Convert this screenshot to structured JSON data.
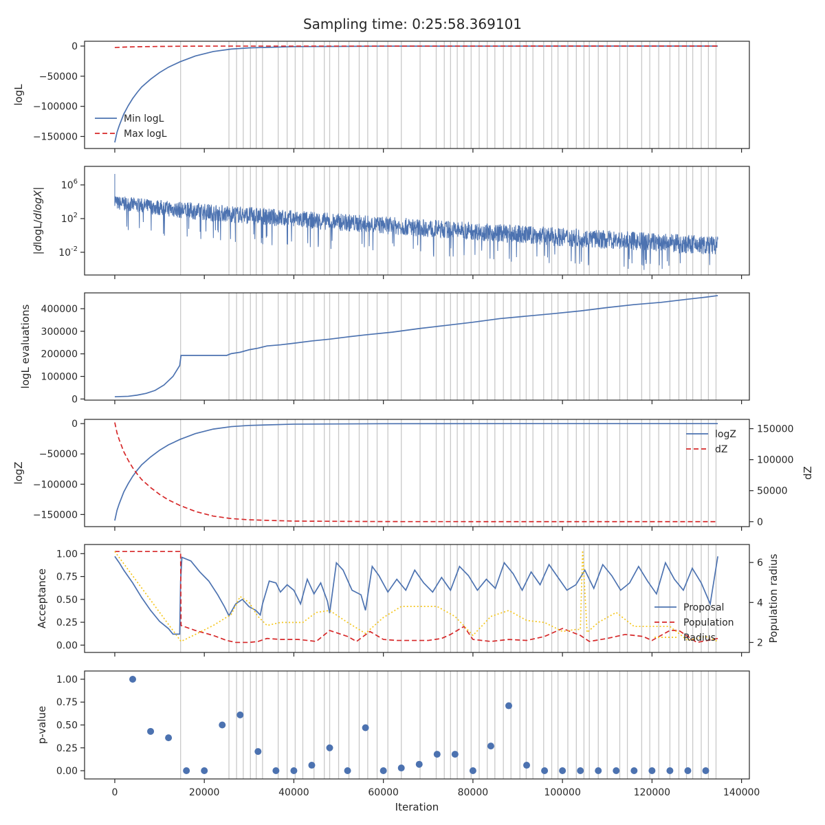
{
  "title": "Sampling time: 0:25:58.369101",
  "colors": {
    "blue": "#4C72B0",
    "red": "#D62728",
    "yellow": "#F5C518",
    "vline": "#C8C8C8",
    "axis": "#262626"
  },
  "chart_data": [
    {
      "id": "logL",
      "type": "line",
      "ylabel": "logL",
      "xlim": [
        -6750,
        141750
      ],
      "ylim": [
        -170000,
        8000
      ],
      "yticks": [
        0,
        -50000,
        -100000,
        -150000
      ],
      "ytick_labels": [
        "0",
        "−50000",
        "−100000",
        "−150000"
      ],
      "legend": {
        "placement": "lower-left",
        "entries": [
          "Min logL",
          "Max logL"
        ]
      },
      "series": [
        {
          "name": "Min logL",
          "style": "solid",
          "color": "#4C72B0",
          "x": [
            0,
            500,
            1000,
            2000,
            3000,
            4000,
            5000,
            6000,
            8000,
            10000,
            12000,
            14600,
            18000,
            22000,
            26000,
            30000,
            40000,
            60000,
            90000,
            134700
          ],
          "y": [
            -160000,
            -143000,
            -132000,
            -113000,
            -99000,
            -87000,
            -77000,
            -68000,
            -55000,
            -44000,
            -35000,
            -26000,
            -16500,
            -9000,
            -5000,
            -3000,
            -900,
            -150,
            -40,
            -15
          ]
        },
        {
          "name": "Max logL",
          "style": "dashed",
          "color": "#D62728",
          "x": [
            0,
            2000,
            5000,
            10000,
            15000,
            20000,
            134700
          ],
          "y": [
            -2500,
            -1700,
            -1100,
            -600,
            -250,
            -80,
            0
          ]
        }
      ]
    },
    {
      "id": "dlogL",
      "type": "line",
      "ylabel": "|dlogL/dlogX|",
      "yscale": "log",
      "xlim": [
        -6750,
        141750
      ],
      "ylim_log10": [
        -4.7,
        8.2
      ],
      "yticks_log10": [
        6,
        2,
        -2
      ],
      "ytick_labels": [
        "10^6",
        "10^2",
        "10^-2"
      ],
      "trend": {
        "x": [
          0,
          500,
          15000,
          40000,
          70000,
          100000,
          134700
        ],
        "upper_log10": [
          5.2,
          4.7,
          4.0,
          3.0,
          1.9,
          0.9,
          -0.1
        ],
        "lower_log10": [
          3.5,
          3.0,
          2.0,
          0.9,
          -0.2,
          -1.3,
          -2.4
        ]
      },
      "peak": {
        "x": 0,
        "y_log10": 7.3
      }
    },
    {
      "id": "evals",
      "type": "line",
      "ylabel": "logL evaluations",
      "xlim": [
        -6750,
        141750
      ],
      "ylim": [
        -5000,
        470000
      ],
      "yticks": [
        0,
        100000,
        200000,
        300000,
        400000
      ],
      "ytick_labels": [
        "0",
        "100000",
        "200000",
        "300000",
        "400000"
      ],
      "series": [
        {
          "name": "",
          "color": "#4C72B0",
          "x": [
            0,
            3000,
            5000,
            7000,
            9000,
            11000,
            13000,
            14500,
            14800,
            25000,
            26000,
            28000,
            30000,
            32000,
            34000,
            37000,
            40000,
            44000,
            48000,
            52000,
            56000,
            62000,
            68000,
            74000,
            80000,
            86000,
            92000,
            98000,
            104000,
            110000,
            116000,
            122000,
            128000,
            132000,
            134700
          ],
          "y": [
            10000,
            12000,
            17000,
            25000,
            38000,
            62000,
            100000,
            148000,
            193000,
            193000,
            201000,
            207000,
            218000,
            225000,
            235000,
            240000,
            247000,
            257000,
            265000,
            275000,
            284000,
            296000,
            312000,
            326000,
            340000,
            356000,
            367000,
            378000,
            390000,
            405000,
            418000,
            428000,
            442000,
            451000,
            458000
          ]
        }
      ]
    },
    {
      "id": "logZ",
      "type": "line",
      "ylabel": "logZ",
      "y2label": "dZ",
      "xlim": [
        -6750,
        141750
      ],
      "ylim": [
        -170000,
        7000
      ],
      "yticks": [
        0,
        -50000,
        -100000,
        -150000
      ],
      "ytick_labels": [
        "0",
        "−50000",
        "−100000",
        "−150000"
      ],
      "y2lim": [
        -8000,
        165000
      ],
      "y2ticks": [
        0,
        50000,
        100000,
        150000
      ],
      "y2tick_labels": [
        "0",
        "50000",
        "100000",
        "150000"
      ],
      "legend": {
        "placement": "upper-right",
        "entries": [
          "logZ",
          "dZ"
        ]
      },
      "series": [
        {
          "name": "logZ",
          "axis": "left",
          "style": "solid",
          "color": "#4C72B0",
          "x": [
            0,
            500,
            1000,
            2000,
            3000,
            4000,
            5000,
            6000,
            8000,
            10000,
            12000,
            14600,
            18000,
            22000,
            26000,
            30000,
            40000,
            60000,
            90000,
            134700
          ],
          "y": [
            -160000,
            -143000,
            -132000,
            -113000,
            -99000,
            -87000,
            -77000,
            -68000,
            -55000,
            -44000,
            -35000,
            -26000,
            -16500,
            -9000,
            -5000,
            -3000,
            -900,
            -150,
            -40,
            -15
          ]
        },
        {
          "name": "dZ",
          "axis": "right",
          "style": "dashed",
          "color": "#D62728",
          "x": [
            0,
            500,
            1000,
            2000,
            3000,
            4000,
            5000,
            6000,
            8000,
            10000,
            12000,
            14600,
            18000,
            22000,
            26000,
            30000,
            40000,
            60000,
            90000,
            134700
          ],
          "y": [
            160000,
            143000,
            132000,
            113000,
            99000,
            87000,
            77000,
            68000,
            55000,
            44000,
            35000,
            26000,
            16500,
            9000,
            5000,
            3000,
            900,
            150,
            40,
            15
          ]
        }
      ]
    },
    {
      "id": "acceptance",
      "type": "line",
      "ylabel": "Acceptance",
      "y2label": "Population radius",
      "xlim": [
        -6750,
        141750
      ],
      "ylim": [
        -0.08,
        1.1
      ],
      "yticks": [
        0,
        0.25,
        0.5,
        0.75,
        1.0
      ],
      "ytick_labels": [
        "0.00",
        "0.25",
        "0.50",
        "0.75",
        "1.00"
      ],
      "y2lim": [
        1.5,
        6.9
      ],
      "y2ticks": [
        2,
        4,
        6
      ],
      "y2tick_labels": [
        "2",
        "4",
        "6"
      ],
      "legend": {
        "placement": "lower-right",
        "entries": [
          "Proposal",
          "Population",
          "Radius"
        ]
      },
      "series": [
        {
          "name": "Proposal",
          "axis": "left",
          "style": "solid",
          "color": "#4C72B0",
          "x": [
            0,
            1000,
            2000,
            4000,
            6000,
            8000,
            10000,
            12000,
            13000,
            14500,
            14700,
            15000,
            17000,
            19000,
            21000,
            23000,
            24500,
            25500,
            27000,
            28500,
            30000,
            31500,
            32500,
            33000,
            34500,
            36000,
            37000,
            38500,
            40000,
            41500,
            43000,
            44500,
            46000,
            47500,
            48000,
            49500,
            51000,
            53000,
            55000,
            56000,
            57500,
            59000,
            61000,
            63000,
            65000,
            67000,
            69000,
            71000,
            73000,
            75000,
            77000,
            79000,
            81000,
            83000,
            85000,
            87000,
            89000,
            91000,
            93000,
            95000,
            97000,
            99000,
            101000,
            103000,
            105000,
            107000,
            109000,
            111000,
            113000,
            115000,
            117000,
            119000,
            121000,
            123000,
            125000,
            127000,
            129000,
            131000,
            133000,
            134700
          ],
          "y": [
            0.97,
            0.9,
            0.82,
            0.68,
            0.52,
            0.38,
            0.26,
            0.18,
            0.12,
            0.12,
            0.7,
            0.96,
            0.92,
            0.8,
            0.7,
            0.55,
            0.42,
            0.32,
            0.45,
            0.5,
            0.42,
            0.38,
            0.33,
            0.45,
            0.7,
            0.68,
            0.58,
            0.66,
            0.6,
            0.45,
            0.72,
            0.56,
            0.68,
            0.48,
            0.35,
            0.9,
            0.82,
            0.6,
            0.55,
            0.38,
            0.86,
            0.76,
            0.58,
            0.72,
            0.6,
            0.82,
            0.68,
            0.58,
            0.74,
            0.6,
            0.86,
            0.76,
            0.6,
            0.72,
            0.62,
            0.9,
            0.78,
            0.6,
            0.8,
            0.66,
            0.88,
            0.74,
            0.6,
            0.66,
            0.82,
            0.62,
            0.88,
            0.76,
            0.6,
            0.68,
            0.86,
            0.7,
            0.56,
            0.9,
            0.72,
            0.6,
            0.84,
            0.68,
            0.45,
            0.97
          ]
        },
        {
          "name": "Population",
          "axis": "right",
          "style": "dashed",
          "color": "#D62728",
          "x": [
            0,
            14700,
            14800,
            18000,
            22000,
            25000,
            27000,
            30000,
            32000,
            34000,
            37000,
            41000,
            45000,
            48000,
            52000,
            54000,
            57000,
            60000,
            63000,
            66000,
            70000,
            73000,
            75000,
            78000,
            80000,
            84000,
            88000,
            92000,
            96000,
            100000,
            104000,
            106000,
            110000,
            114000,
            118000,
            120000,
            124000,
            126000,
            130000,
            134700
          ],
          "y": [
            6.55,
            6.55,
            2.85,
            2.6,
            2.35,
            2.1,
            2.0,
            2.0,
            2.05,
            2.2,
            2.15,
            2.15,
            2.05,
            2.6,
            2.3,
            2.05,
            2.55,
            2.15,
            2.1,
            2.1,
            2.1,
            2.2,
            2.4,
            2.8,
            2.15,
            2.05,
            2.15,
            2.1,
            2.3,
            2.7,
            2.35,
            2.05,
            2.2,
            2.4,
            2.3,
            2.1,
            2.6,
            2.6,
            2.0,
            2.2
          ]
        },
        {
          "name": "Radius",
          "axis": "right",
          "style": "dotted",
          "color": "#F5C518",
          "x": [
            0,
            14800,
            18000,
            22000,
            26000,
            28000,
            30000,
            32000,
            34000,
            37000,
            42000,
            45000,
            48000,
            52000,
            56000,
            60000,
            64000,
            68000,
            72000,
            76000,
            80000,
            84000,
            88000,
            92000,
            96000,
            100000,
            103000,
            104000,
            104500,
            105500,
            108000,
            112000,
            116000,
            120000,
            124000,
            128000,
            132000,
            134700
          ],
          "y": [
            6.55,
            2.05,
            2.4,
            2.85,
            3.4,
            4.3,
            4.0,
            3.3,
            2.85,
            3.0,
            3.0,
            3.5,
            3.6,
            3.0,
            2.45,
            3.25,
            3.8,
            3.8,
            3.8,
            3.3,
            2.35,
            3.3,
            3.6,
            3.1,
            3.0,
            2.55,
            2.65,
            2.65,
            6.6,
            2.5,
            3.0,
            3.5,
            2.8,
            2.8,
            2.8,
            2.1,
            2.3,
            2.05
          ]
        }
      ]
    },
    {
      "id": "pvalue",
      "type": "scatter",
      "ylabel": "p-value",
      "xlabel": "Iteration",
      "xlim": [
        -6750,
        141750
      ],
      "ylim": [
        -0.09,
        1.09
      ],
      "yticks": [
        0,
        0.25,
        0.5,
        0.75,
        1.0
      ],
      "ytick_labels": [
        "0.00",
        "0.25",
        "0.50",
        "0.75",
        "1.00"
      ],
      "xticks": [
        0,
        20000,
        40000,
        60000,
        80000,
        100000,
        120000,
        140000
      ],
      "xtick_labels": [
        "0",
        "20000",
        "40000",
        "60000",
        "80000",
        "100000",
        "120000",
        "140000"
      ],
      "series": [
        {
          "name": "",
          "color": "#4C72B0",
          "x": [
            4000,
            8000,
            12000,
            16000,
            20000,
            24000,
            28000,
            32000,
            36000,
            40000,
            44000,
            48000,
            52000,
            56000,
            60000,
            64000,
            68000,
            72000,
            76000,
            80000,
            84000,
            88000,
            92000,
            96000,
            100000,
            104000,
            108000,
            112000,
            116000,
            120000,
            124000,
            128000,
            132000
          ],
          "y": [
            1.0,
            0.43,
            0.36,
            0.0,
            0.0,
            0.5,
            0.61,
            0.21,
            0.0,
            0.0,
            0.06,
            0.25,
            0.0,
            0.47,
            0.0,
            0.03,
            0.07,
            0.18,
            0.18,
            0.0,
            0.27,
            0.71,
            0.06,
            0.0,
            0.0,
            0.0,
            0.0,
            0.0,
            0.0,
            0.0,
            0.0,
            0.0,
            0.0
          ]
        }
      ]
    }
  ],
  "insertion_lines_x": [
    14700,
    25500,
    27200,
    28700,
    30300,
    31600,
    33000,
    36500,
    38500,
    40300,
    42000,
    44500,
    46800,
    48000,
    50000,
    52300,
    54600,
    56500,
    58600,
    61000,
    64000,
    68200,
    71800,
    73600,
    75000,
    76500,
    78000,
    79600,
    81400,
    83200,
    84900,
    86800,
    88500,
    90500,
    91900,
    93400,
    95800,
    97600,
    99000,
    101200,
    103100,
    104800,
    106000,
    108000,
    110000,
    112800,
    114500,
    117700,
    119500,
    121500,
    124000,
    126000,
    127700,
    129100,
    131000,
    132600,
    134300
  ]
}
